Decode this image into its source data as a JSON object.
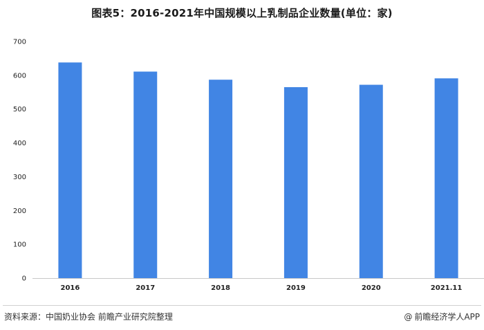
{
  "chart_data": {
    "type": "bar",
    "title": "图表5：2016-2021年中国规模以上乳制品企业数量(单位：家)",
    "categories": [
      "2016",
      "2017",
      "2018",
      "2019",
      "2020",
      "2021.11"
    ],
    "values": [
      638,
      611,
      587,
      565,
      572,
      591
    ],
    "ylim": [
      0,
      700
    ],
    "yticks": [
      0,
      100,
      200,
      300,
      400,
      500,
      600,
      700
    ],
    "grid": false,
    "bar_color": "#4185e4",
    "xlabel": "",
    "ylabel": ""
  },
  "footer": {
    "source": "资料来源：中国奶业协会 前瞻产业研究院整理",
    "brand": "前瞻经济学人APP",
    "brand_icon": "@"
  }
}
